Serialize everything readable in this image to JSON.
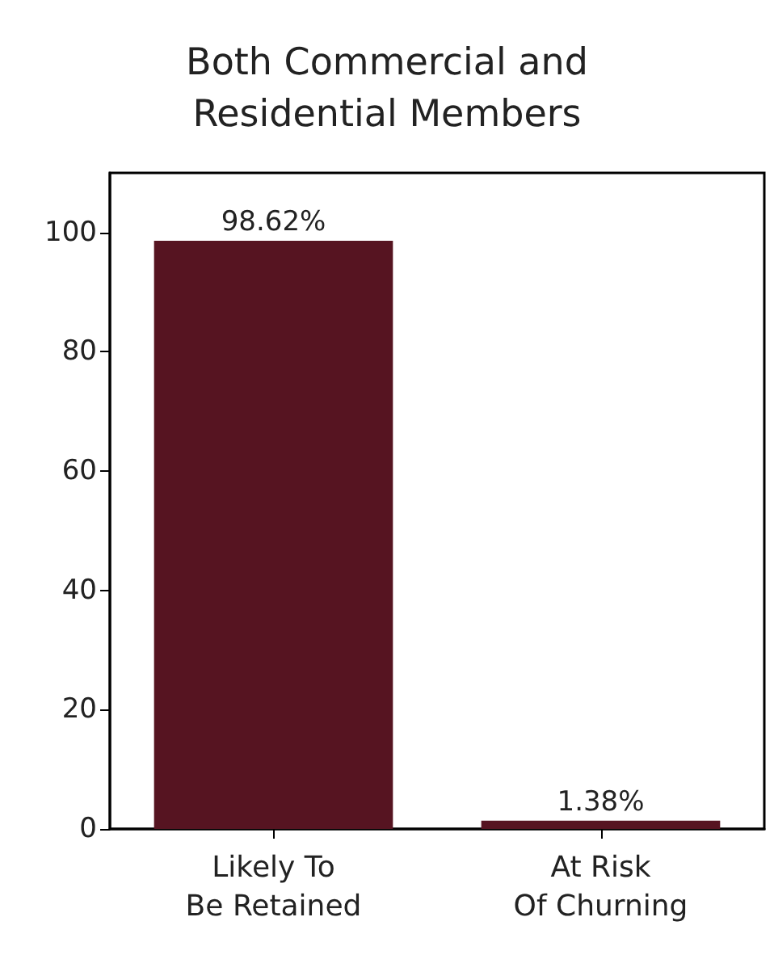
{
  "chart_data": {
    "type": "bar",
    "title": "Both Commercial and\nResidential Members",
    "categories": [
      "Likely To\nBe Retained",
      "At Risk\nOf Churning"
    ],
    "values": [
      98.62,
      1.38
    ],
    "value_labels": [
      "98.62%",
      "1.38%"
    ],
    "color": "#561421",
    "ylim": [
      0,
      110
    ],
    "yticks": [
      0,
      20,
      40,
      60,
      80,
      100
    ],
    "grid": false
  }
}
